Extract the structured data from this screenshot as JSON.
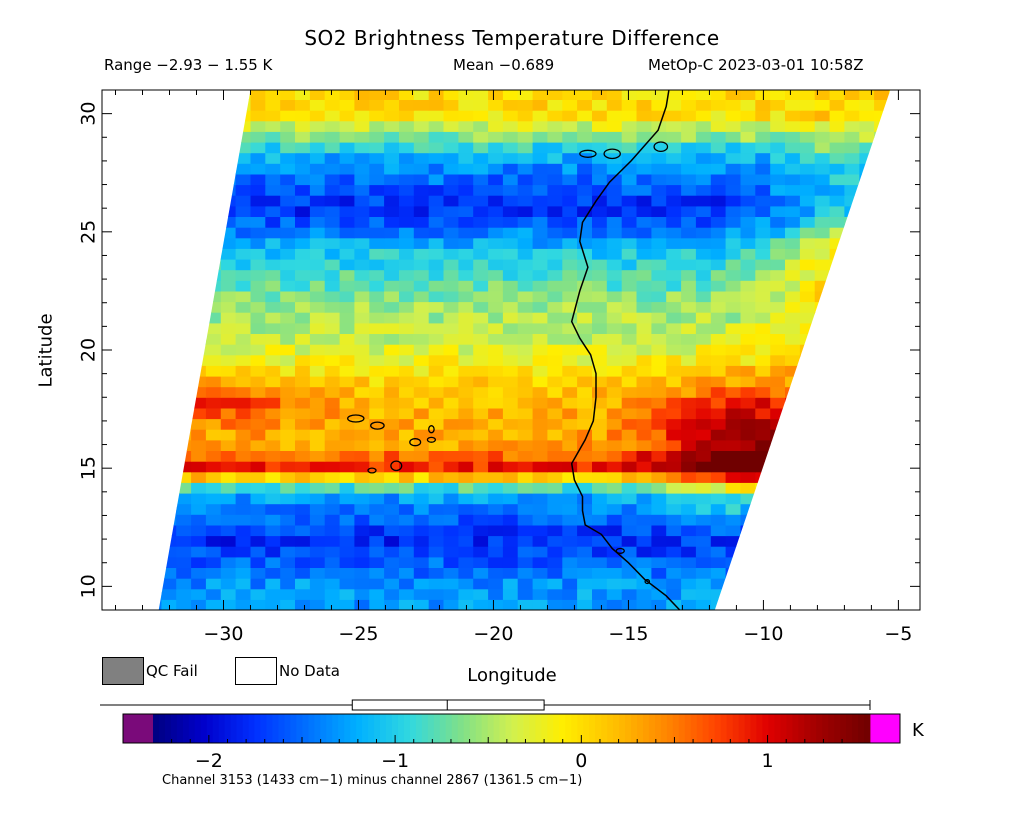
{
  "chart_data": {
    "type": "heatmap",
    "title": "SO2 Brightness Temperature Difference",
    "range_text": "Range −2.93 − 1.55 K",
    "mean_text": "Mean −0.689",
    "satellite_text": "MetOp-C 2023-03-01 10:58Z",
    "xlabel": "Longitude",
    "ylabel": "Latitude",
    "xlim": [
      -34.5,
      -4.2
    ],
    "ylim": [
      9,
      31
    ],
    "xticks": [
      -30,
      -25,
      -20,
      -15,
      -10,
      -5
    ],
    "yticks": [
      10,
      15,
      20,
      25,
      30
    ],
    "x_tick_labels": [
      "−30",
      "−25",
      "−20",
      "−15",
      "−10",
      "−5"
    ],
    "y_tick_labels": [
      "10",
      "15",
      "20",
      "25",
      "30"
    ],
    "swath_corners_lon_lat": [
      [
        -32.4,
        9
      ],
      [
        -29.0,
        31
      ],
      [
        -5.3,
        31
      ],
      [
        -11.8,
        9
      ]
    ],
    "field_description_rows": [
      {
        "lat": 30,
        "value": 0.0
      },
      {
        "lat": 28,
        "value": -1.3
      },
      {
        "lat": 26,
        "value": -1.8
      },
      {
        "lat": 24,
        "value": -1.0
      },
      {
        "lat": 22,
        "value": -0.6
      },
      {
        "lat": 20,
        "value": -0.3
      },
      {
        "lat": 18,
        "value": 0.2
      },
      {
        "lat": 16,
        "value": 0.3
      },
      {
        "lat": 15,
        "value": 0.9
      },
      {
        "lat": 14,
        "value": -1.2
      },
      {
        "lat": 12,
        "value": -1.8
      },
      {
        "lat": 10,
        "value": -1.3
      }
    ],
    "colorbar": {
      "min": -2.3,
      "max": 1.55,
      "ticks": [
        -2,
        -1,
        0,
        1
      ],
      "tick_labels": [
        "−2",
        "−1",
        "0",
        "1"
      ],
      "unit": "K",
      "below_color": "#7a0a7a",
      "above_color": "#ff00ff",
      "colors": [
        "#000080",
        "#0000cc",
        "#0030ff",
        "#0070ff",
        "#00b0ff",
        "#30d8e0",
        "#7ee08a",
        "#d0f050",
        "#ffee00",
        "#ffc000",
        "#ff8800",
        "#ff4400",
        "#e00000",
        "#a00000",
        "#700000"
      ],
      "boxplot": {
        "whisker_low": -2.46,
        "q1": -1.23,
        "median": -0.72,
        "q3": -0.2,
        "whisker_high": 1.55
      },
      "caption": "Channel 3153 (1433 cm−1) minus channel 2867 (1361.5 cm−1)"
    },
    "legend": [
      {
        "label": "QC Fail",
        "color": "#808080"
      },
      {
        "label": "No Data",
        "color": "#ffffff"
      }
    ]
  }
}
